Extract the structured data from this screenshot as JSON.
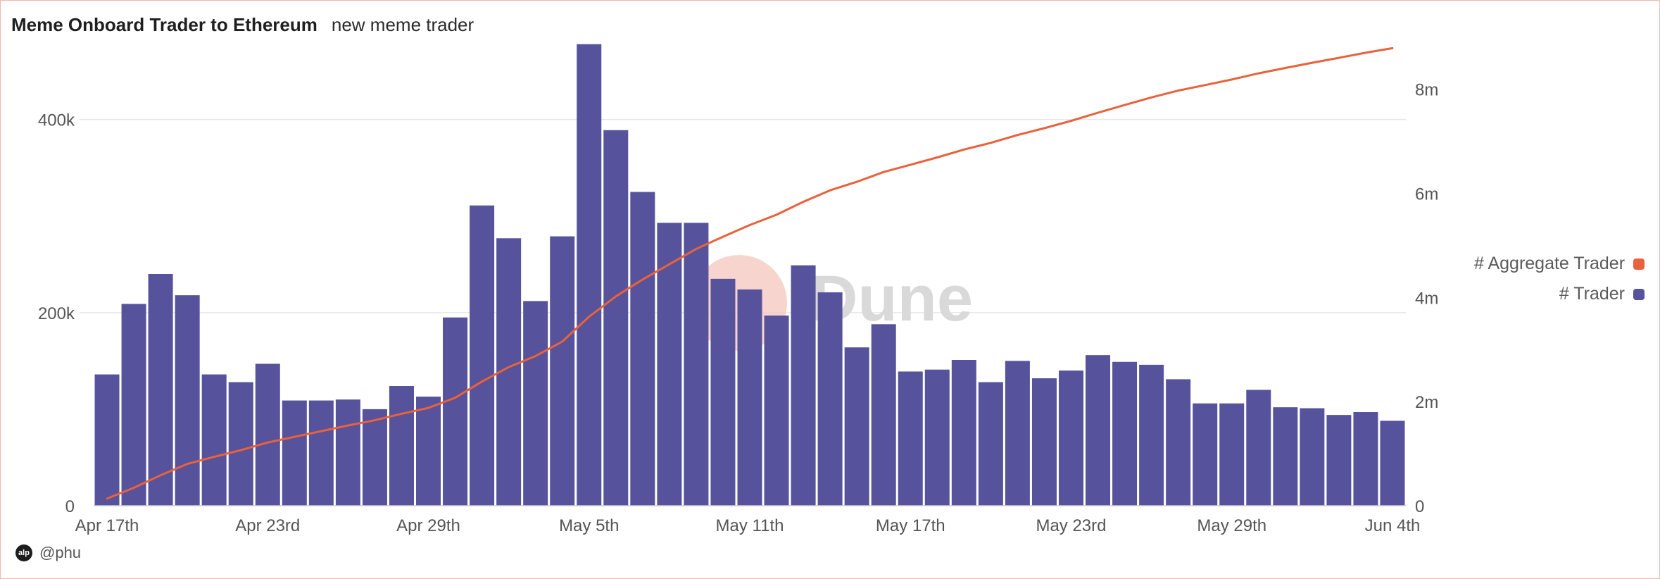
{
  "header": {
    "title": "Meme Onboard Trader to Ethereum",
    "subtitle": "new meme trader"
  },
  "watermark": {
    "text": "Dune"
  },
  "footer": {
    "author": "@phu",
    "avatar_text": "alp"
  },
  "colors": {
    "bars": "#56529b",
    "line": "#e8623c",
    "grid": "#e7e7e7",
    "axis_text": "#555555",
    "watermark_circle": "#f6c6bd",
    "watermark_text": "#d9d9d9"
  },
  "legend": {
    "placement": "right",
    "items": [
      {
        "label": "# Aggregate Trader",
        "color": "#e8623c",
        "icon": "rounded-square"
      },
      {
        "label": "# Trader",
        "color": "#56529b",
        "icon": "rounded-square"
      }
    ]
  },
  "chart_data": {
    "type": "bar",
    "title": "Meme Onboard Trader to Ethereum",
    "subtitle": "new meme trader",
    "xlabel": "",
    "ylabel": "",
    "x_tick_labels": [
      "Apr 17th",
      "Apr 23rd",
      "Apr 29th",
      "May 5th",
      "May 11th",
      "May 17th",
      "May 23rd",
      "May 29th",
      "Jun 4th"
    ],
    "x_tick_indices": [
      0,
      6,
      12,
      18,
      24,
      30,
      36,
      42,
      48
    ],
    "y_left": {
      "ticks": [
        0,
        200000,
        400000
      ],
      "tick_labels": [
        "0",
        "200k",
        "400k"
      ],
      "range": [
        0,
        480000
      ]
    },
    "y_right": {
      "ticks": [
        0,
        2000000,
        4000000,
        6000000,
        8000000
      ],
      "tick_labels": [
        "0",
        "2m",
        "4m",
        "6m",
        "8m"
      ],
      "range": [
        0,
        8900000
      ]
    },
    "grid": true,
    "series": [
      {
        "name": "# Trader",
        "type": "bar",
        "axis": "left",
        "values": [
          136000,
          209000,
          240000,
          218000,
          136000,
          128000,
          147000,
          109000,
          109000,
          110000,
          100000,
          124000,
          113000,
          195000,
          311000,
          277000,
          212000,
          279000,
          478000,
          389000,
          325000,
          293000,
          293000,
          235000,
          224000,
          197000,
          249000,
          221000,
          164000,
          188000,
          139000,
          141000,
          151000,
          128000,
          150000,
          132000,
          140000,
          156000,
          149000,
          146000,
          131000,
          106000,
          106000,
          120000,
          102000,
          101000,
          94000,
          97000,
          88000
        ]
      },
      {
        "name": "# Aggregate Trader",
        "type": "line",
        "axis": "right",
        "values": [
          136000,
          345000,
          585000,
          803000,
          939000,
          1067000,
          1214000,
          1323000,
          1432000,
          1542000,
          1642000,
          1766000,
          1879000,
          2074000,
          2385000,
          2662000,
          2874000,
          3153000,
          3631000,
          4020000,
          4345000,
          4638000,
          4931000,
          5166000,
          5390000,
          5587000,
          5836000,
          6057000,
          6221000,
          6409000,
          6548000,
          6689000,
          6840000,
          6968000,
          7118000,
          7250000,
          7390000,
          7546000,
          7695000,
          7841000,
          7972000,
          8078000,
          8184000,
          8304000,
          8406000,
          8507000,
          8601000,
          8698000,
          8786000
        ]
      }
    ]
  }
}
